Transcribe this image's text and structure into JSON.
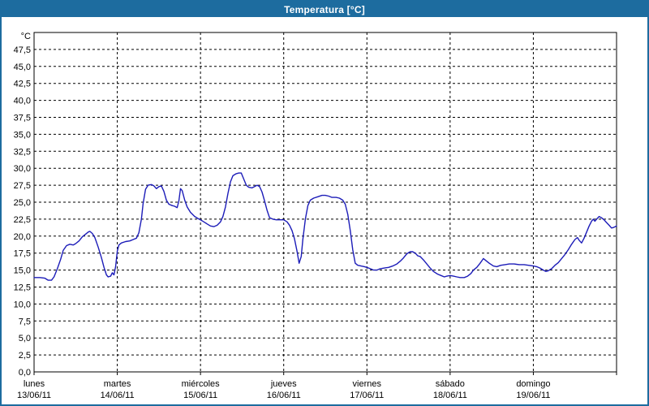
{
  "window": {
    "title": "Temperatura [°C]"
  },
  "colors": {
    "titlebar_bg": "#1d6c9f",
    "titlebar_text": "#ffffff",
    "line": "#1c1cb8",
    "grid": "#000000",
    "plot_border": "#000000",
    "background": "#ffffff"
  },
  "chart_data": {
    "type": "line",
    "title": "Temperatura [°C]",
    "y_unit_label": "°C",
    "ylim": [
      0,
      50
    ],
    "ytick_step": 2.5,
    "ytick_labels": [
      "0,0",
      "2,5",
      "5,0",
      "7,5",
      "10,0",
      "12,5",
      "15,0",
      "17,5",
      "20,0",
      "22,5",
      "25,0",
      "27,5",
      "30,0",
      "32,5",
      "35,0",
      "37,5",
      "40,0",
      "42,5",
      "45,0",
      "47,5"
    ],
    "grid": "dashed",
    "x_range_days": 7,
    "x_days": [
      {
        "label": "lunes",
        "date": "13/06/11"
      },
      {
        "label": "martes",
        "date": "14/06/11"
      },
      {
        "label": "miércoles",
        "date": "15/06/11"
      },
      {
        "label": "jueves",
        "date": "16/06/11"
      },
      {
        "label": "viernes",
        "date": "17/06/11"
      },
      {
        "label": "sábado",
        "date": "18/06/11"
      },
      {
        "label": "domingo",
        "date": "19/06/11"
      }
    ],
    "series": [
      {
        "name": "Temperatura",
        "color": "#1c1cb8",
        "points": [
          [
            0.0,
            13.9
          ],
          [
            0.07,
            13.9
          ],
          [
            0.13,
            13.8
          ],
          [
            0.17,
            13.5
          ],
          [
            0.21,
            13.5
          ],
          [
            0.24,
            14.0
          ],
          [
            0.28,
            15.2
          ],
          [
            0.32,
            16.6
          ],
          [
            0.35,
            17.9
          ],
          [
            0.39,
            18.6
          ],
          [
            0.43,
            18.8
          ],
          [
            0.47,
            18.7
          ],
          [
            0.5,
            18.9
          ],
          [
            0.54,
            19.3
          ],
          [
            0.58,
            19.9
          ],
          [
            0.62,
            20.3
          ],
          [
            0.65,
            20.6
          ],
          [
            0.67,
            20.7
          ],
          [
            0.7,
            20.4
          ],
          [
            0.73,
            19.8
          ],
          [
            0.77,
            18.4
          ],
          [
            0.81,
            16.8
          ],
          [
            0.84,
            15.4
          ],
          [
            0.87,
            14.3
          ],
          [
            0.89,
            14.0
          ],
          [
            0.92,
            14.1
          ],
          [
            0.94,
            14.6
          ],
          [
            0.96,
            14.3
          ],
          [
            0.98,
            15.5
          ],
          [
            1.0,
            17.8
          ],
          [
            1.02,
            18.7
          ],
          [
            1.05,
            19.0
          ],
          [
            1.1,
            19.2
          ],
          [
            1.15,
            19.3
          ],
          [
            1.19,
            19.5
          ],
          [
            1.23,
            19.7
          ],
          [
            1.26,
            20.5
          ],
          [
            1.29,
            22.5
          ],
          [
            1.31,
            24.8
          ],
          [
            1.34,
            26.9
          ],
          [
            1.37,
            27.5
          ],
          [
            1.41,
            27.6
          ],
          [
            1.44,
            27.4
          ],
          [
            1.47,
            27.0
          ],
          [
            1.5,
            27.3
          ],
          [
            1.53,
            27.4
          ],
          [
            1.56,
            26.6
          ],
          [
            1.59,
            25.3
          ],
          [
            1.62,
            24.7
          ],
          [
            1.66,
            24.5
          ],
          [
            1.69,
            24.4
          ],
          [
            1.72,
            24.2
          ],
          [
            1.74,
            25.2
          ],
          [
            1.76,
            27.0
          ],
          [
            1.78,
            26.7
          ],
          [
            1.81,
            25.3
          ],
          [
            1.84,
            24.3
          ],
          [
            1.88,
            23.5
          ],
          [
            1.93,
            22.9
          ],
          [
            1.97,
            22.6
          ],
          [
            2.0,
            22.4
          ],
          [
            2.04,
            22.1
          ],
          [
            2.08,
            21.8
          ],
          [
            2.12,
            21.5
          ],
          [
            2.16,
            21.4
          ],
          [
            2.2,
            21.6
          ],
          [
            2.24,
            22.1
          ],
          [
            2.27,
            22.9
          ],
          [
            2.3,
            24.3
          ],
          [
            2.33,
            26.3
          ],
          [
            2.36,
            28.0
          ],
          [
            2.39,
            28.9
          ],
          [
            2.43,
            29.2
          ],
          [
            2.46,
            29.3
          ],
          [
            2.49,
            29.3
          ],
          [
            2.52,
            28.4
          ],
          [
            2.55,
            27.5
          ],
          [
            2.58,
            27.2
          ],
          [
            2.62,
            27.1
          ],
          [
            2.65,
            27.3
          ],
          [
            2.68,
            27.5
          ],
          [
            2.71,
            27.3
          ],
          [
            2.74,
            26.5
          ],
          [
            2.77,
            25.2
          ],
          [
            2.8,
            23.8
          ],
          [
            2.83,
            22.7
          ],
          [
            2.87,
            22.5
          ],
          [
            2.91,
            22.4
          ],
          [
            2.95,
            22.4
          ],
          [
            3.0,
            22.4
          ],
          [
            3.04,
            22.1
          ],
          [
            3.07,
            21.6
          ],
          [
            3.1,
            20.8
          ],
          [
            3.13,
            19.6
          ],
          [
            3.16,
            17.8
          ],
          [
            3.185,
            16.0
          ],
          [
            3.21,
            17.0
          ],
          [
            3.23,
            19.5
          ],
          [
            3.26,
            22.5
          ],
          [
            3.29,
            24.5
          ],
          [
            3.32,
            25.3
          ],
          [
            3.36,
            25.6
          ],
          [
            3.41,
            25.8
          ],
          [
            3.46,
            26.0
          ],
          [
            3.5,
            26.0
          ],
          [
            3.54,
            25.9
          ],
          [
            3.58,
            25.7
          ],
          [
            3.63,
            25.7
          ],
          [
            3.67,
            25.6
          ],
          [
            3.71,
            25.3
          ],
          [
            3.74,
            24.7
          ],
          [
            3.77,
            23.2
          ],
          [
            3.8,
            20.8
          ],
          [
            3.83,
            18.0
          ],
          [
            3.86,
            16.0
          ],
          [
            3.89,
            15.7
          ],
          [
            3.93,
            15.6
          ],
          [
            3.97,
            15.5
          ],
          [
            4.0,
            15.4
          ],
          [
            4.04,
            15.2
          ],
          [
            4.08,
            15.0
          ],
          [
            4.12,
            15.0
          ],
          [
            4.16,
            15.2
          ],
          [
            4.21,
            15.3
          ],
          [
            4.26,
            15.4
          ],
          [
            4.31,
            15.6
          ],
          [
            4.36,
            15.9
          ],
          [
            4.4,
            16.3
          ],
          [
            4.44,
            16.8
          ],
          [
            4.48,
            17.4
          ],
          [
            4.52,
            17.7
          ],
          [
            4.55,
            17.7
          ],
          [
            4.58,
            17.5
          ],
          [
            4.61,
            17.1
          ],
          [
            4.64,
            17.0
          ],
          [
            4.68,
            16.5
          ],
          [
            4.72,
            15.9
          ],
          [
            4.76,
            15.3
          ],
          [
            4.8,
            14.8
          ],
          [
            4.85,
            14.4
          ],
          [
            4.89,
            14.2
          ],
          [
            4.93,
            14.0
          ],
          [
            4.96,
            14.1
          ],
          [
            5.0,
            14.2
          ],
          [
            5.04,
            14.1
          ],
          [
            5.08,
            14.0
          ],
          [
            5.12,
            13.9
          ],
          [
            5.17,
            13.9
          ],
          [
            5.21,
            14.1
          ],
          [
            5.25,
            14.5
          ],
          [
            5.28,
            15.0
          ],
          [
            5.32,
            15.4
          ],
          [
            5.36,
            16.0
          ],
          [
            5.4,
            16.7
          ],
          [
            5.43,
            16.4
          ],
          [
            5.47,
            16.0
          ],
          [
            5.52,
            15.6
          ],
          [
            5.56,
            15.5
          ],
          [
            5.61,
            15.7
          ],
          [
            5.66,
            15.8
          ],
          [
            5.71,
            15.9
          ],
          [
            5.77,
            15.9
          ],
          [
            5.83,
            15.8
          ],
          [
            5.89,
            15.8
          ],
          [
            5.94,
            15.7
          ],
          [
            6.0,
            15.6
          ],
          [
            6.04,
            15.5
          ],
          [
            6.08,
            15.3
          ],
          [
            6.12,
            15.0
          ],
          [
            6.15,
            14.8
          ],
          [
            6.18,
            14.9
          ],
          [
            6.22,
            15.2
          ],
          [
            6.26,
            15.7
          ],
          [
            6.3,
            16.1
          ],
          [
            6.34,
            16.7
          ],
          [
            6.38,
            17.3
          ],
          [
            6.42,
            18.0
          ],
          [
            6.46,
            18.8
          ],
          [
            6.5,
            19.5
          ],
          [
            6.53,
            19.8
          ],
          [
            6.55,
            19.4
          ],
          [
            6.58,
            19.0
          ],
          [
            6.61,
            19.7
          ],
          [
            6.64,
            20.6
          ],
          [
            6.67,
            21.5
          ],
          [
            6.7,
            22.2
          ],
          [
            6.72,
            22.5
          ],
          [
            6.74,
            22.2
          ],
          [
            6.76,
            22.5
          ],
          [
            6.79,
            22.9
          ],
          [
            6.82,
            22.7
          ],
          [
            6.85,
            22.4
          ],
          [
            6.88,
            22.0
          ],
          [
            6.91,
            21.6
          ],
          [
            6.94,
            21.2
          ],
          [
            6.97,
            21.3
          ],
          [
            7.0,
            21.5
          ]
        ]
      }
    ],
    "legend": "none"
  }
}
